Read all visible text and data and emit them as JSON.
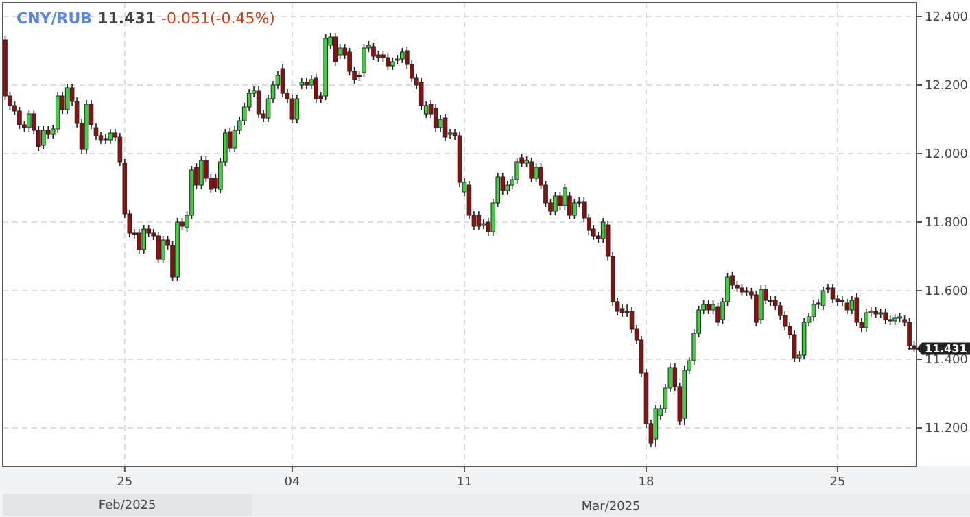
{
  "chart_data": {
    "type": "candlestick",
    "title": "CNY/RUB",
    "subtitle": "11.431",
    "annotations": [
      "-0.051(-0.45%)",
      "Feb/2025",
      "Mar/2025",
      "11.431"
    ],
    "colors": [
      "#8b1111",
      "#8b1111",
      "#8b1111",
      "#8b1111",
      "#8b1111",
      "#44cc44",
      "#8b1111",
      "#8b1111",
      "#44cc44",
      "#8b1111",
      "#44cc44",
      "#44cc44",
      "#8b1111",
      "#44cc44",
      "#8b1111",
      "#8b1111",
      "#8b1111",
      "#44cc44",
      "#8b1111",
      "#8b1111",
      "#8b1111",
      "#8b1111",
      "#44cc44",
      "#8b1111",
      "#8b1111",
      "#8b1111",
      "#8b1111",
      "#8b1111",
      "#8b1111",
      "#44cc44",
      "#8b1111",
      "#8b1111",
      "#8b1111",
      "#44cc44",
      "#8b1111",
      "#8b1111",
      "#44cc44",
      "#8b1111",
      "#44cc44",
      "#44cc44",
      "#8b1111",
      "#44cc44",
      "#8b1111",
      "#8b1111",
      "#8b1111",
      "#44cc44",
      "#44cc44",
      "#8b1111",
      "#44cc44",
      "#44cc44",
      "#44cc44",
      "#44cc44",
      "#44cc44",
      "#8b1111",
      "#8b1111",
      "#44cc44",
      "#44cc44",
      "#44cc44",
      "#8b1111",
      "#8b1111",
      "#8b1111",
      "#44cc44",
      "#44cc44",
      "#8b1111",
      "#44cc44",
      "#8b1111",
      "#8b1111",
      "#44cc44",
      "#44cc44",
      "#8b1111",
      "#44cc44",
      "#8b1111",
      "#8b1111",
      "#8b1111",
      "#8b1111",
      "#44cc44",
      "#44cc44",
      "#8b1111",
      "#8b1111",
      "#8b1111",
      "#8b1111",
      "#44cc44",
      "#44cc44",
      "#44cc44",
      "#8b1111",
      "#8b1111",
      "#8b1111",
      "#8b1111",
      "#44cc44",
      "#8b1111",
      "#8b1111",
      "#44cc44",
      "#8b1111",
      "#44cc44",
      "#8b1111",
      "#8b1111",
      "#44cc44",
      "#8b1111",
      "#8b1111",
      "#8b1111",
      "#44cc44",
      "#8b1111",
      "#44cc44",
      "#44cc44",
      "#8b1111",
      "#44cc44",
      "#44cc44",
      "#44cc44",
      "#8b1111",
      "#44cc44",
      "#8b1111",
      "#44cc44",
      "#8b1111",
      "#8b1111",
      "#8b1111",
      "#44cc44",
      "#8b1111",
      "#44cc44",
      "#8b1111",
      "#44cc44",
      "#8b1111",
      "#8b1111",
      "#8b1111",
      "#8b1111",
      "#8b1111",
      "#44cc44",
      "#8b1111",
      "#8b1111",
      "#8b1111",
      "#8b1111",
      "#8b1111",
      "#8b1111",
      "#8b1111",
      "#8b1111",
      "#8b1111",
      "#8b1111",
      "#44cc44",
      "#44cc44",
      "#44cc44",
      "#44cc44",
      "#8b1111",
      "#8b1111",
      "#44cc44",
      "#44cc44",
      "#44cc44",
      "#44cc44",
      "#44cc44",
      "#8b1111",
      "#44cc44",
      "#8b1111",
      "#44cc44",
      "#44cc44",
      "#8b1111",
      "#8b1111",
      "#8b1111",
      "#8b1111",
      "#8b1111",
      "#8b1111",
      "#44cc44",
      "#8b1111",
      "#8b1111",
      "#8b1111",
      "#8b1111",
      "#8b1111",
      "#8b1111",
      "#8b1111",
      "#44cc44",
      "#44cc44",
      "#44cc44",
      "#44cc44",
      "#8b1111",
      "#44cc44",
      "#8b1111",
      "#8b1111",
      "#8b1111",
      "#8b1111",
      "#8b1111",
      "#44cc44",
      "#8b1111",
      "#8b1111",
      "#44cc44",
      "#44cc44",
      "#8b1111",
      "#44cc44",
      "#8b1111",
      "#8b1111",
      "#44cc44",
      "#44cc44",
      "#8b1111",
      "#8b1111",
      "#8b1111"
    ],
    "grid": true,
    "ylim": [
      11.088,
      12.44
    ],
    "yticks": [
      {
        "value": 11.2,
        "label": "11.200"
      },
      {
        "value": 11.4,
        "label": "11.400"
      },
      {
        "value": 11.6,
        "label": "11.600"
      },
      {
        "value": 11.8,
        "label": "11.800"
      },
      {
        "value": 12.0,
        "label": "12.000"
      },
      {
        "value": 12.2,
        "label": "12.200"
      },
      {
        "value": 12.4,
        "label": "12.400"
      }
    ],
    "categories": [
      null,
      null,
      null,
      null,
      null,
      null,
      null,
      null,
      null,
      null,
      null,
      null,
      null,
      null,
      null,
      null,
      null,
      null,
      null,
      null,
      null,
      null,
      null,
      null,
      null,
      "25",
      null,
      null,
      null,
      null,
      null,
      null,
      null,
      null,
      null,
      null,
      null,
      null,
      null,
      null,
      null,
      null,
      null,
      null,
      null,
      null,
      null,
      null,
      null,
      null,
      null,
      null,
      null,
      null,
      null,
      null,
      null,
      null,
      null,
      null,
      "04",
      null,
      null,
      null,
      null,
      null,
      null,
      null,
      null,
      null,
      null,
      null,
      null,
      null,
      null,
      null,
      null,
      null,
      null,
      null,
      null,
      null,
      null,
      null,
      null,
      null,
      null,
      null,
      null,
      null,
      null,
      null,
      null,
      null,
      null,
      null,
      "11",
      null,
      null,
      null,
      null,
      null,
      null,
      null,
      null,
      null,
      null,
      null,
      null,
      null,
      null,
      null,
      null,
      null,
      null,
      null,
      null,
      null,
      null,
      null,
      null,
      null,
      null,
      null,
      null,
      null,
      null,
      null,
      null,
      null,
      null,
      null,
      null,
      null,
      "18",
      null,
      null,
      null,
      null,
      null,
      null,
      null,
      null,
      null,
      null,
      null,
      null,
      null,
      null,
      null,
      null,
      null,
      null,
      null,
      null,
      null,
      null,
      null,
      null,
      null,
      null,
      null,
      null,
      null,
      null,
      null,
      null,
      null,
      null,
      null,
      null,
      null,
      null,
      null,
      "25",
      null,
      null,
      null,
      null,
      null,
      null,
      null,
      null,
      null,
      null,
      null,
      null,
      null,
      null,
      null,
      null
    ],
    "ohlc": [
      [
        12.332,
        12.344,
        12.156,
        12.168
      ],
      [
        12.168,
        12.18,
        12.128,
        12.14
      ],
      [
        12.14,
        12.152,
        12.112,
        12.124
      ],
      [
        12.124,
        12.136,
        12.072,
        12.084
      ],
      [
        12.084,
        12.096,
        12.064,
        12.076
      ],
      [
        12.076,
        12.128,
        12.064,
        12.116
      ],
      [
        12.116,
        12.128,
        12.056,
        12.068
      ],
      [
        12.068,
        12.08,
        12.008,
        12.02
      ],
      [
        12.024,
        12.08,
        12.012,
        12.068
      ],
      [
        12.068,
        12.08,
        12.044,
        12.056
      ],
      [
        12.056,
        12.084,
        12.044,
        12.072
      ],
      [
        12.072,
        12.18,
        12.06,
        12.168
      ],
      [
        12.168,
        12.18,
        12.116,
        12.128
      ],
      [
        12.128,
        12.204,
        12.116,
        12.192
      ],
      [
        12.192,
        12.204,
        12.14,
        12.152
      ],
      [
        12.152,
        12.164,
        12.076,
        12.088
      ],
      [
        12.088,
        12.1,
        12.0,
        12.012
      ],
      [
        12.012,
        12.156,
        12.0,
        12.144
      ],
      [
        12.144,
        12.156,
        12.072,
        12.084
      ],
      [
        12.076,
        12.088,
        12.04,
        12.052
      ],
      [
        12.052,
        12.064,
        12.028,
        12.04
      ],
      [
        12.044,
        12.056,
        12.028,
        12.04
      ],
      [
        12.04,
        12.072,
        12.028,
        12.06
      ],
      [
        12.06,
        12.072,
        12.036,
        12.048
      ],
      [
        12.048,
        12.06,
        11.964,
        11.976
      ],
      [
        11.972,
        11.984,
        11.812,
        11.824
      ],
      [
        11.824,
        11.836,
        11.756,
        11.768
      ],
      [
        11.768,
        11.78,
        11.752,
        11.764
      ],
      [
        11.768,
        11.78,
        11.708,
        11.72
      ],
      [
        11.72,
        11.792,
        11.708,
        11.78
      ],
      [
        11.78,
        11.792,
        11.756,
        11.768
      ],
      [
        11.768,
        11.78,
        11.748,
        11.76
      ],
      [
        11.76,
        11.772,
        11.68,
        11.692
      ],
      [
        11.692,
        11.76,
        11.68,
        11.748
      ],
      [
        11.748,
        11.76,
        11.72,
        11.732
      ],
      [
        11.732,
        11.744,
        11.628,
        11.64
      ],
      [
        11.64,
        11.812,
        11.628,
        11.8
      ],
      [
        11.8,
        11.812,
        11.776,
        11.788
      ],
      [
        11.784,
        11.832,
        11.772,
        11.82
      ],
      [
        11.82,
        11.964,
        11.808,
        11.952
      ],
      [
        11.96,
        11.972,
        11.896,
        11.908
      ],
      [
        11.908,
        11.992,
        11.896,
        11.98
      ],
      [
        11.98,
        11.992,
        11.916,
        11.928
      ],
      [
        11.928,
        11.94,
        11.884,
        11.896
      ],
      [
        11.928,
        11.94,
        11.888,
        11.9
      ],
      [
        11.896,
        11.988,
        11.884,
        11.976
      ],
      [
        11.976,
        12.072,
        11.964,
        12.06
      ],
      [
        12.064,
        12.076,
        12.004,
        12.016
      ],
      [
        12.016,
        12.08,
        12.004,
        12.068
      ],
      [
        12.068,
        12.108,
        12.056,
        12.096
      ],
      [
        12.096,
        12.148,
        12.084,
        12.136
      ],
      [
        12.136,
        12.188,
        12.124,
        12.176
      ],
      [
        12.176,
        12.196,
        12.164,
        12.184
      ],
      [
        12.184,
        12.196,
        12.104,
        12.116
      ],
      [
        12.116,
        12.128,
        12.092,
        12.104
      ],
      [
        12.104,
        12.172,
        12.092,
        12.16
      ],
      [
        12.16,
        12.212,
        12.148,
        12.2
      ],
      [
        12.2,
        12.24,
        12.188,
        12.228
      ],
      [
        12.248,
        12.26,
        12.164,
        12.176
      ],
      [
        12.176,
        12.188,
        12.148,
        12.16
      ],
      [
        12.16,
        12.172,
        12.088,
        12.1
      ],
      [
        12.1,
        12.172,
        12.088,
        12.16
      ],
      [
        12.2,
        12.22,
        12.188,
        12.208
      ],
      [
        12.208,
        12.22,
        12.188,
        12.2
      ],
      [
        12.2,
        12.228,
        12.188,
        12.216
      ],
      [
        12.22,
        12.232,
        12.148,
        12.16
      ],
      [
        12.168,
        12.18,
        12.148,
        12.16
      ],
      [
        12.168,
        12.348,
        12.156,
        12.336
      ],
      [
        12.316,
        12.352,
        12.304,
        12.34
      ],
      [
        12.34,
        12.352,
        12.256,
        12.268
      ],
      [
        12.288,
        12.32,
        12.276,
        12.308
      ],
      [
        12.308,
        12.32,
        12.276,
        12.288
      ],
      [
        12.296,
        12.308,
        12.228,
        12.24
      ],
      [
        12.24,
        12.252,
        12.204,
        12.216
      ],
      [
        12.228,
        12.24,
        12.212,
        12.224
      ],
      [
        12.236,
        12.32,
        12.224,
        12.308
      ],
      [
        12.308,
        12.328,
        12.296,
        12.316
      ],
      [
        12.312,
        12.324,
        12.272,
        12.284
      ],
      [
        12.288,
        12.3,
        12.268,
        12.28
      ],
      [
        12.288,
        12.3,
        12.268,
        12.28
      ],
      [
        12.28,
        12.292,
        12.244,
        12.256
      ],
      [
        12.256,
        12.28,
        12.244,
        12.268
      ],
      [
        12.272,
        12.288,
        12.26,
        12.276
      ],
      [
        12.276,
        12.308,
        12.264,
        12.296
      ],
      [
        12.3,
        12.312,
        12.248,
        12.26
      ],
      [
        12.26,
        12.272,
        12.208,
        12.22
      ],
      [
        12.22,
        12.232,
        12.188,
        12.2
      ],
      [
        12.208,
        12.22,
        12.128,
        12.14
      ],
      [
        12.116,
        12.152,
        12.104,
        12.14
      ],
      [
        12.144,
        12.156,
        12.104,
        12.116
      ],
      [
        12.132,
        12.144,
        12.064,
        12.076
      ],
      [
        12.076,
        12.112,
        12.064,
        12.1
      ],
      [
        12.104,
        12.116,
        12.036,
        12.048
      ],
      [
        12.056,
        12.072,
        12.044,
        12.06
      ],
      [
        12.06,
        12.072,
        12.04,
        12.052
      ],
      [
        12.052,
        12.064,
        11.904,
        11.916
      ],
      [
        11.888,
        11.928,
        11.876,
        11.916
      ],
      [
        11.908,
        11.92,
        11.808,
        11.82
      ],
      [
        11.82,
        11.832,
        11.776,
        11.788
      ],
      [
        11.82,
        11.832,
        11.776,
        11.788
      ],
      [
        11.792,
        11.808,
        11.78,
        11.796
      ],
      [
        11.8,
        11.812,
        11.76,
        11.772
      ],
      [
        11.772,
        11.868,
        11.76,
        11.856
      ],
      [
        11.856,
        11.944,
        11.844,
        11.932
      ],
      [
        11.932,
        11.944,
        11.88,
        11.892
      ],
      [
        11.892,
        11.92,
        11.88,
        11.908
      ],
      [
        11.908,
        11.936,
        11.896,
        11.924
      ],
      [
        11.924,
        11.988,
        11.912,
        11.976
      ],
      [
        11.988,
        12.0,
        11.96,
        11.972
      ],
      [
        11.972,
        11.992,
        11.96,
        11.98
      ],
      [
        11.976,
        11.988,
        11.916,
        11.928
      ],
      [
        11.928,
        11.972,
        11.916,
        11.96
      ],
      [
        11.96,
        11.972,
        11.896,
        11.908
      ],
      [
        11.908,
        11.92,
        11.844,
        11.856
      ],
      [
        11.856,
        11.868,
        11.82,
        11.832
      ],
      [
        11.832,
        11.888,
        11.82,
        11.876
      ],
      [
        11.876,
        11.888,
        11.836,
        11.848
      ],
      [
        11.848,
        11.912,
        11.836,
        11.9
      ],
      [
        11.876,
        11.888,
        11.808,
        11.82
      ],
      [
        11.82,
        11.868,
        11.808,
        11.856
      ],
      [
        11.86,
        11.872,
        11.844,
        11.856
      ],
      [
        11.86,
        11.872,
        11.8,
        11.812
      ],
      [
        11.812,
        11.824,
        11.764,
        11.776
      ],
      [
        11.78,
        11.792,
        11.748,
        11.76
      ],
      [
        11.76,
        11.772,
        11.74,
        11.752
      ],
      [
        11.752,
        11.812,
        11.74,
        11.8
      ],
      [
        11.792,
        11.804,
        11.688,
        11.7
      ],
      [
        11.7,
        11.712,
        11.556,
        11.568
      ],
      [
        11.568,
        11.58,
        11.528,
        11.54
      ],
      [
        11.548,
        11.56,
        11.524,
        11.536
      ],
      [
        11.54,
        11.56,
        11.524,
        11.536
      ],
      [
        11.54,
        11.552,
        11.476,
        11.488
      ],
      [
        11.488,
        11.5,
        11.444,
        11.456
      ],
      [
        11.456,
        11.468,
        11.348,
        11.36
      ],
      [
        11.36,
        11.372,
        11.2,
        11.212
      ],
      [
        11.212,
        11.224,
        11.144,
        11.156
      ],
      [
        11.168,
        11.268,
        11.144,
        11.256
      ],
      [
        11.236,
        11.268,
        11.224,
        11.256
      ],
      [
        11.256,
        11.328,
        11.244,
        11.316
      ],
      [
        11.316,
        11.388,
        11.304,
        11.376
      ],
      [
        11.376,
        11.388,
        11.308,
        11.32
      ],
      [
        11.32,
        11.332,
        11.208,
        11.22
      ],
      [
        11.228,
        11.38,
        11.208,
        11.368
      ],
      [
        11.368,
        11.408,
        11.356,
        11.396
      ],
      [
        11.396,
        11.488,
        11.384,
        11.476
      ],
      [
        11.476,
        11.556,
        11.464,
        11.544
      ],
      [
        11.544,
        11.572,
        11.532,
        11.56
      ],
      [
        11.56,
        11.572,
        11.532,
        11.544
      ],
      [
        11.544,
        11.572,
        11.532,
        11.56
      ],
      [
        11.552,
        11.564,
        11.496,
        11.508
      ],
      [
        11.516,
        11.58,
        11.504,
        11.568
      ],
      [
        11.568,
        11.652,
        11.556,
        11.64
      ],
      [
        11.644,
        11.656,
        11.604,
        11.616
      ],
      [
        11.616,
        11.628,
        11.596,
        11.608
      ],
      [
        11.608,
        11.62,
        11.584,
        11.596
      ],
      [
        11.6,
        11.612,
        11.584,
        11.596
      ],
      [
        11.596,
        11.608,
        11.576,
        11.588
      ],
      [
        11.588,
        11.6,
        11.496,
        11.508
      ],
      [
        11.516,
        11.616,
        11.504,
        11.604
      ],
      [
        11.604,
        11.616,
        11.56,
        11.572
      ],
      [
        11.572,
        11.584,
        11.556,
        11.568
      ],
      [
        11.572,
        11.584,
        11.544,
        11.556
      ],
      [
        11.556,
        11.568,
        11.516,
        11.528
      ],
      [
        11.528,
        11.54,
        11.484,
        11.496
      ],
      [
        11.496,
        11.508,
        11.46,
        11.472
      ],
      [
        11.472,
        11.484,
        11.392,
        11.404
      ],
      [
        11.404,
        11.424,
        11.392,
        11.412
      ],
      [
        11.412,
        11.52,
        11.4,
        11.508
      ],
      [
        11.508,
        11.536,
        11.496,
        11.524
      ],
      [
        11.524,
        11.572,
        11.512,
        11.56
      ],
      [
        11.564,
        11.576,
        11.548,
        11.56
      ],
      [
        11.556,
        11.612,
        11.544,
        11.6
      ],
      [
        11.608,
        11.62,
        11.592,
        11.604
      ],
      [
        11.608,
        11.62,
        11.564,
        11.576
      ],
      [
        11.576,
        11.588,
        11.556,
        11.568
      ],
      [
        11.572,
        11.584,
        11.556,
        11.568
      ],
      [
        11.564,
        11.576,
        11.532,
        11.544
      ],
      [
        11.544,
        11.584,
        11.532,
        11.572
      ],
      [
        11.58,
        11.592,
        11.496,
        11.508
      ],
      [
        11.508,
        11.52,
        11.48,
        11.492
      ],
      [
        11.492,
        11.548,
        11.48,
        11.536
      ],
      [
        11.536,
        11.552,
        11.524,
        11.54
      ],
      [
        11.54,
        11.552,
        11.52,
        11.532
      ],
      [
        11.532,
        11.548,
        11.52,
        11.536
      ],
      [
        11.536,
        11.548,
        11.504,
        11.516
      ],
      [
        11.516,
        11.528,
        11.5,
        11.512
      ],
      [
        11.512,
        11.532,
        11.5,
        11.52
      ],
      [
        11.52,
        11.536,
        11.508,
        11.524
      ],
      [
        11.516,
        11.528,
        11.496,
        11.508
      ],
      [
        11.508,
        11.52,
        11.428,
        11.44
      ],
      [
        11.44,
        11.452,
        11.42,
        11.431
      ]
    ]
  }
}
